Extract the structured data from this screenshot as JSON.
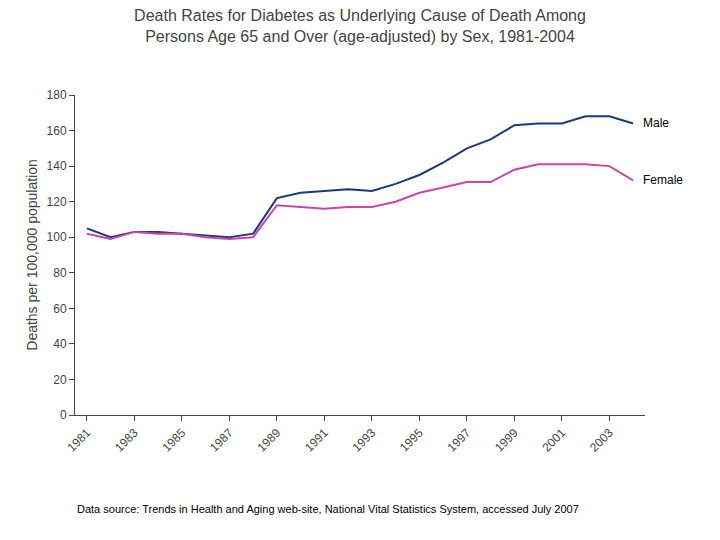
{
  "chart_data": {
    "type": "line",
    "title": "Death Rates for Diabetes as Underlying Cause of Death Among\nPersons Age 65 and Over (age-adjusted) by Sex, 1981-2004",
    "ylabel": "Deaths per 100,000 population",
    "annotations": [
      "Data source: Trends in Health and Aging web-site, National Vital Statistics System, accessed July 2007"
    ],
    "x": [
      1981,
      1982,
      1983,
      1984,
      1985,
      1986,
      1987,
      1988,
      1989,
      1990,
      1991,
      1992,
      1993,
      1994,
      1995,
      1996,
      1997,
      1998,
      1999,
      2000,
      2001,
      2002,
      2003,
      2004
    ],
    "series": [
      {
        "name": "Male",
        "color": "#1a3a80",
        "values": [
          105,
          100,
          103,
          103,
          102,
          101,
          100,
          102,
          122,
          125,
          126,
          127,
          126,
          130,
          135,
          142,
          150,
          155,
          163,
          164,
          164,
          168,
          168,
          164
        ]
      },
      {
        "name": "Female",
        "color": "#cc44aa",
        "values": [
          102,
          99,
          103,
          102,
          102,
          100,
          99,
          100,
          118,
          117,
          116,
          117,
          117,
          120,
          125,
          128,
          131,
          131,
          138,
          141,
          141,
          141,
          140,
          132
        ]
      }
    ],
    "xlim": [
      1980.5,
      2004.5
    ],
    "xticks": [
      1981,
      1983,
      1985,
      1987,
      1989,
      1991,
      1993,
      1995,
      1997,
      1999,
      2001,
      2003
    ],
    "ylim": [
      0,
      180
    ],
    "yticks": [
      0,
      20,
      40,
      60,
      80,
      100,
      120,
      140,
      160,
      180
    ],
    "grid": false
  }
}
